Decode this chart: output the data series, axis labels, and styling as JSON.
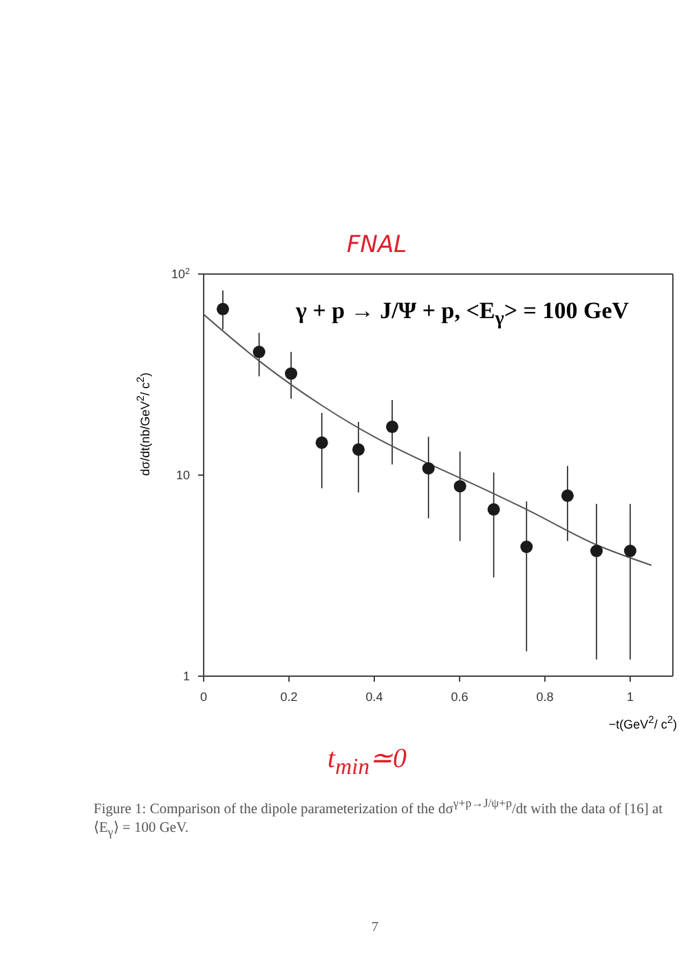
{
  "chart_data": {
    "type": "scatter",
    "title": "FNAL",
    "subtitle": "γ + p → J/Ψ + p, <E$_{γ}$> = 100 GeV",
    "xlabel": "−t(GeV$^{2}$/ c$^{2}$)",
    "ylabel": "dσ/dt(nb/GeV$^{2}$/ c$^{2}$)",
    "annotations": [
      "t$_{min}$≃0",
      "Figure 1:  Comparison of the dipole parameterization of the dσ$^{γ+p→J/ψ+p}$/dt with the data of [16] at ⟨E$_{γ}$⟩ = 100 GeV.",
      "7"
    ],
    "log": "y",
    "xlim": [
      0,
      1.1
    ],
    "xticks": [
      0,
      0.2,
      0.4,
      0.6,
      0.8,
      1
    ],
    "ylim": [
      1,
      100
    ],
    "yticks": [
      1,
      10,
      {
        "value": 100,
        "label": "10$^{2}$"
      }
    ],
    "series": [
      {
        "color": "#1a1a1a",
        "marker": "circle",
        "x": [
          0.045,
          0.13,
          0.205,
          0.277,
          0.363,
          0.442,
          0.527,
          0.601,
          0.68,
          0.757,
          0.853,
          0.921,
          1.0
        ],
        "values": [
          67,
          41,
          32,
          14.5,
          13.4,
          17.4,
          10.8,
          8.8,
          6.75,
          4.4,
          7.9,
          4.2,
          4.2
        ],
        "errors": [
          [
            53,
            83
          ],
          [
            31,
            51
          ],
          [
            24,
            41
          ],
          [
            8.6,
            20.4
          ],
          [
            8.2,
            18.4
          ],
          [
            11.3,
            23.6
          ],
          [
            6.1,
            15.5
          ],
          [
            4.7,
            13.1
          ],
          [
            3.1,
            10.3
          ],
          [
            1.33,
            7.4
          ],
          [
            4.7,
            11.1
          ],
          [
            1.21,
            7.2
          ],
          [
            1.21,
            7.2
          ]
        ]
      },
      {
        "type": "line",
        "color": "#555555",
        "marker": "none",
        "line_style": "solid",
        "x": [
          0,
          0.13,
          0.28,
          0.4,
          0.527,
          0.6,
          0.757,
          0.921,
          1.05
        ],
        "values": [
          63,
          37,
          22,
          15.5,
          11.4,
          9.7,
          6.75,
          4.5,
          3.56
        ]
      }
    ]
  }
}
